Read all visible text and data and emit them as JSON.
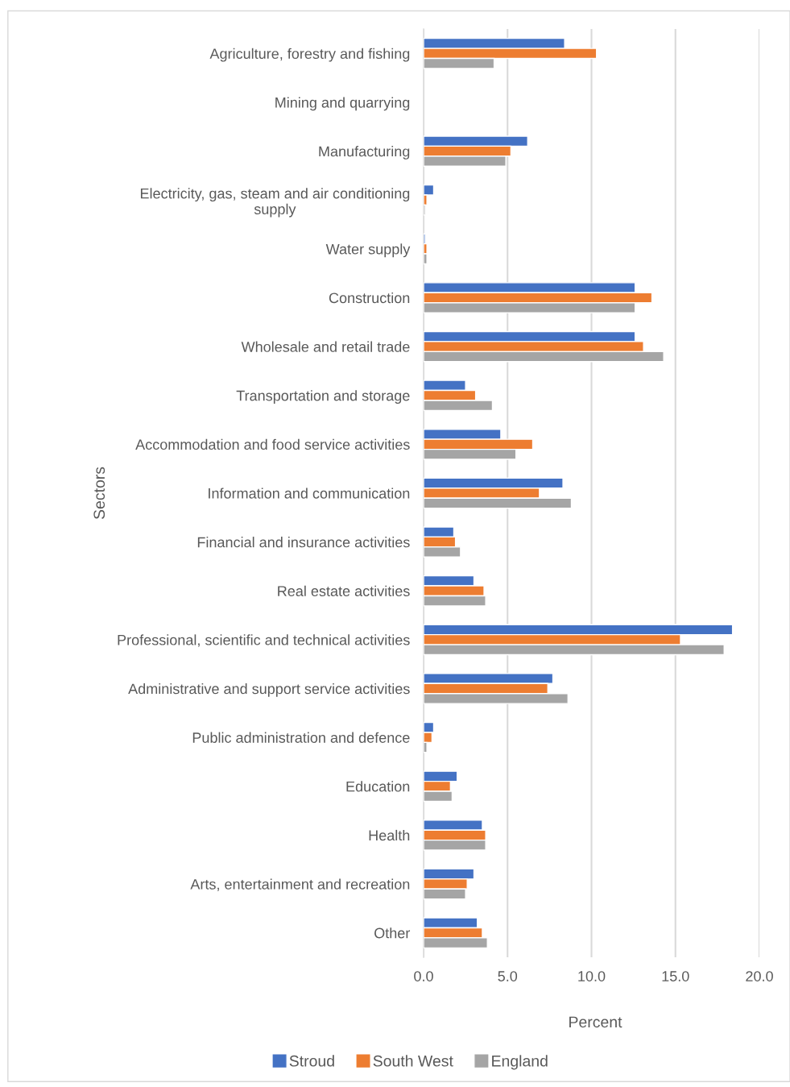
{
  "chart_data": {
    "type": "bar",
    "orientation": "horizontal",
    "ylabel": "Sectors",
    "xlabel": "Percent",
    "categories": [
      "Agriculture, forestry and fishing",
      "Mining and quarrying",
      "Manufacturing",
      "Electricity, gas, steam and air conditioning supply",
      "Water supply",
      "Construction",
      "Wholesale and retail trade",
      "Transportation and storage",
      "Accommodation and food service activities",
      "Information and communication",
      "Financial and insurance activities",
      "Real estate activities",
      "Professional, scientific and technical activities",
      "Administrative and support service activities",
      "Public administration and defence",
      "Education",
      "Health",
      "Arts, entertainment and recreation",
      "Other"
    ],
    "series": [
      {
        "name": "Stroud",
        "color": "#4472c4",
        "values": [
          8.4,
          null,
          6.2,
          0.6,
          0.1,
          12.6,
          12.6,
          2.5,
          4.6,
          8.3,
          1.8,
          3.0,
          18.4,
          7.7,
          0.6,
          2.0,
          3.5,
          3.0,
          3.2
        ]
      },
      {
        "name": "South West",
        "color": "#ed7d31",
        "values": [
          10.3,
          null,
          5.2,
          0.2,
          0.2,
          13.6,
          13.1,
          3.1,
          6.5,
          6.9,
          1.9,
          3.6,
          15.3,
          7.4,
          0.5,
          1.6,
          3.7,
          2.6,
          3.5
        ]
      },
      {
        "name": "England",
        "color": "#a5a5a5",
        "values": [
          4.2,
          null,
          4.9,
          0.1,
          0.2,
          12.6,
          14.3,
          4.1,
          5.5,
          8.8,
          2.2,
          3.7,
          17.9,
          8.6,
          0.2,
          1.7,
          3.7,
          2.5,
          3.8
        ]
      }
    ],
    "xlim": [
      0,
      20
    ],
    "xticks": [
      {
        "value": 0,
        "label": "0.0"
      },
      {
        "value": 5,
        "label": "5.0"
      },
      {
        "value": 10,
        "label": "10.0"
      },
      {
        "value": 15,
        "label": "15.0"
      },
      {
        "value": 20,
        "label": "20.0"
      }
    ],
    "grid": "x",
    "legend": "bottom"
  }
}
